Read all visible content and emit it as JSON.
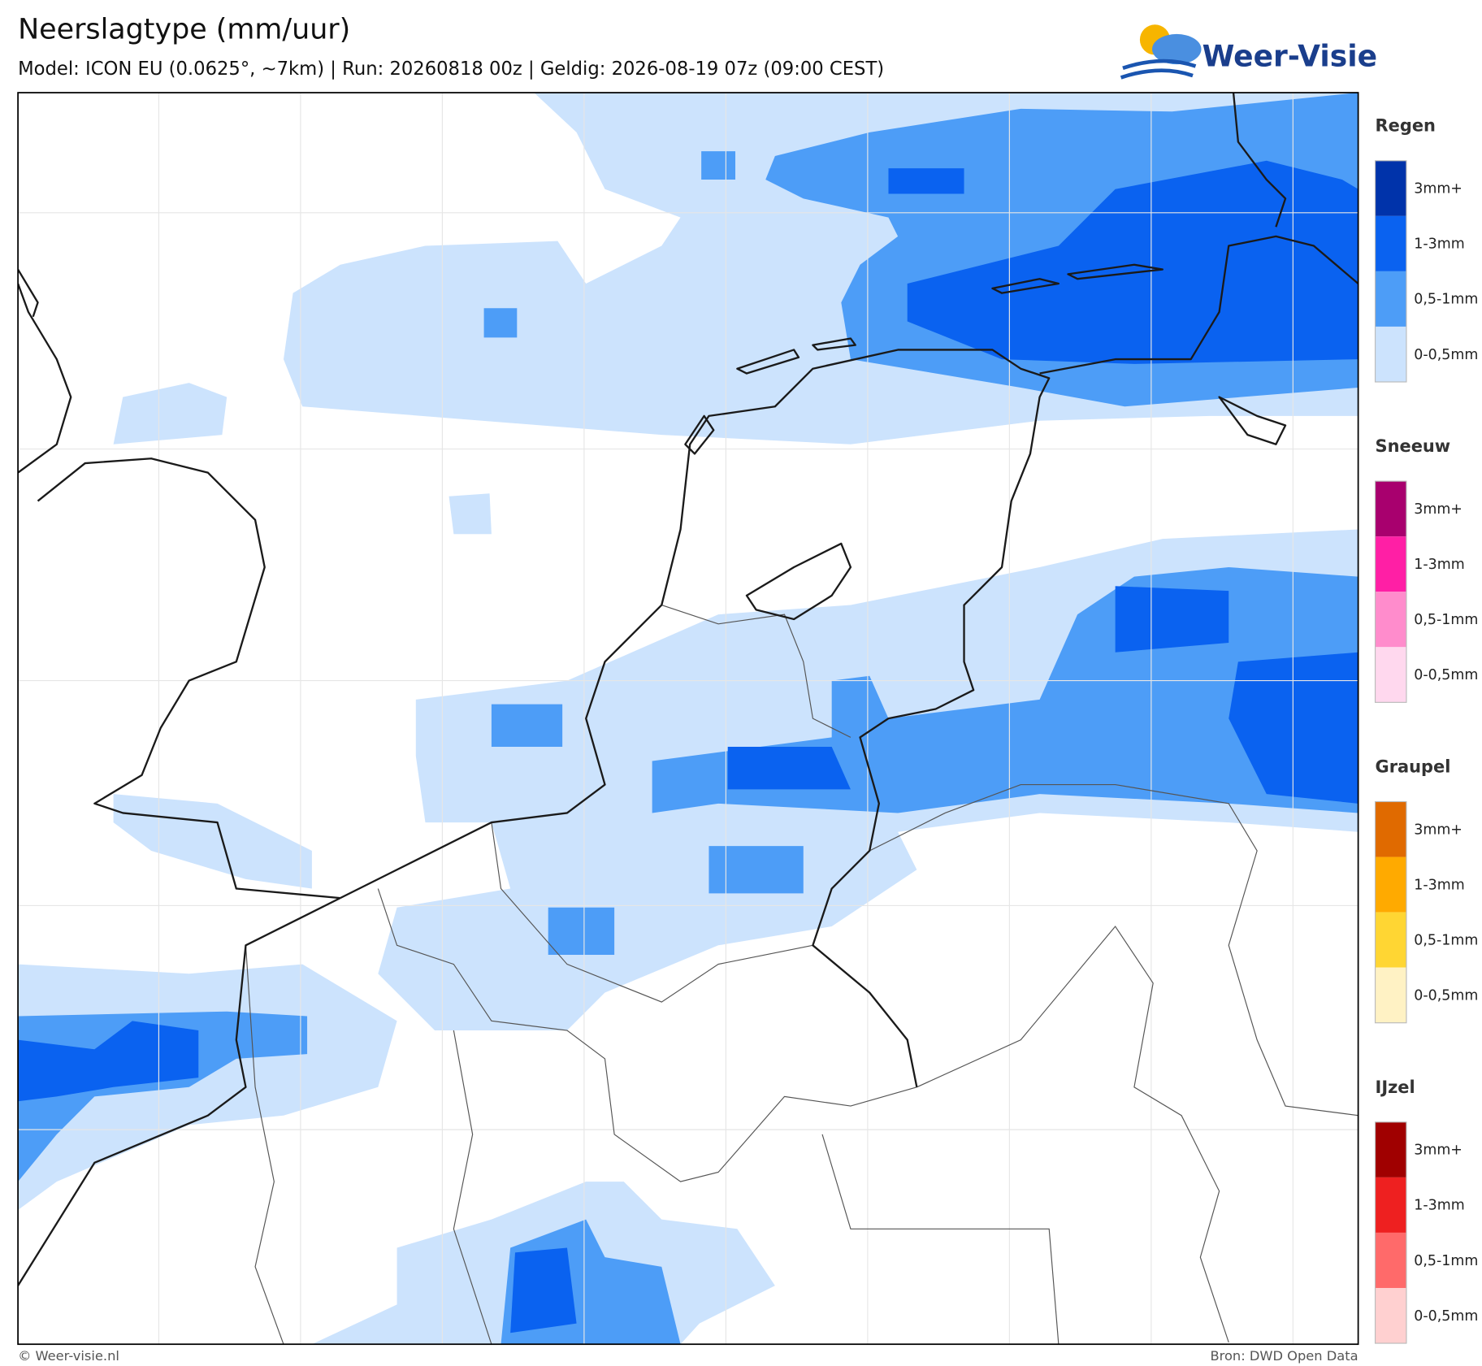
{
  "header": {
    "title": "Neerslagtype (mm/uur)",
    "subtitle": "Model: ICON EU (0.0625°, ~7km)  |  Run: 20260818 00z  |  Geldig: 2026-08-19 07z (09:00 CEST)"
  },
  "logo": {
    "text": "Weer-Visie"
  },
  "legend": {
    "sections": [
      {
        "title": "Regen",
        "items": [
          {
            "label": "3mm+",
            "color": "#0033aa"
          },
          {
            "label": "1-3mm",
            "color": "#0a62f0"
          },
          {
            "label": "0,5-1mm",
            "color": "#4d9df7"
          },
          {
            "label": "0-0,5mm",
            "color": "#cce3fd"
          }
        ]
      },
      {
        "title": "Sneeuw",
        "items": [
          {
            "label": "3mm+",
            "color": "#a8006e"
          },
          {
            "label": "1-3mm",
            "color": "#ff1fa5"
          },
          {
            "label": "0,5-1mm",
            "color": "#ff8ccc"
          },
          {
            "label": "0-0,5mm",
            "color": "#ffd8ee"
          }
        ]
      },
      {
        "title": "Graupel",
        "items": [
          {
            "label": "3mm+",
            "color": "#e06a00"
          },
          {
            "label": "1-3mm",
            "color": "#ffaa00"
          },
          {
            "label": "0,5-1mm",
            "color": "#ffd633"
          },
          {
            "label": "0-0,5mm",
            "color": "#fff2c4"
          }
        ]
      },
      {
        "title": "IJzel",
        "items": [
          {
            "label": "3mm+",
            "color": "#a00000"
          },
          {
            "label": "1-3mm",
            "color": "#ee2020"
          },
          {
            "label": "0,5-1mm",
            "color": "#ff6a6a"
          },
          {
            "label": "0-0,5mm",
            "color": "#ffd0d0"
          }
        ]
      }
    ]
  },
  "footer": {
    "left": "© Weer-visie.nl",
    "right": "Bron: DWD Open Data"
  }
}
